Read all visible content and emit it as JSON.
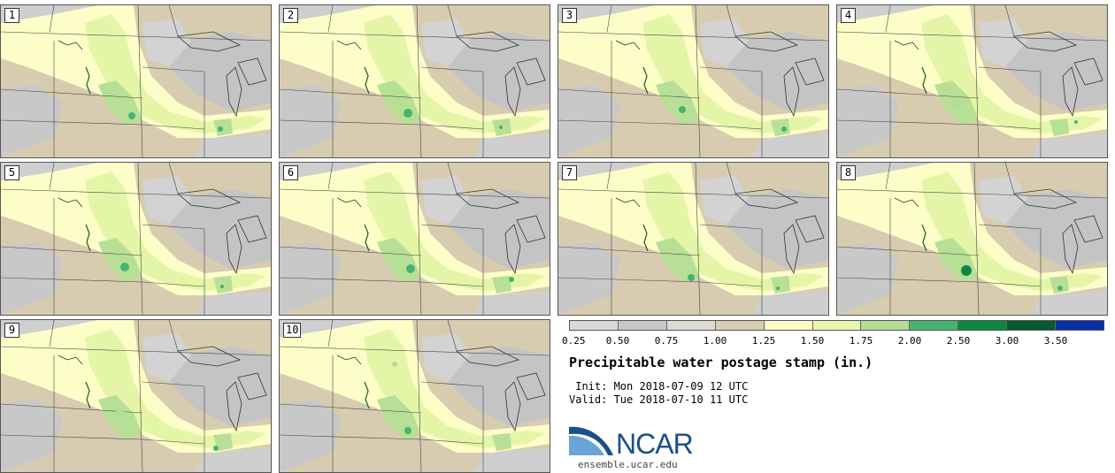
{
  "stamps": [
    "1",
    "2",
    "3",
    "4",
    "5",
    "6",
    "7",
    "8",
    "9",
    "10"
  ],
  "legend": {
    "colors": [
      "#d9d9d9",
      "#c8c8c8",
      "#dcdcd2",
      "#d8cdb0",
      "#fdfdc8",
      "#e8f7b0",
      "#b2dd94",
      "#46b46e",
      "#0c8643",
      "#075a2e",
      "#0a2fa8"
    ],
    "ticks": [
      "0.25",
      "0.50",
      "0.75",
      "1.00",
      "1.25",
      "1.50",
      "1.75",
      "2.00",
      "2.50",
      "3.00",
      "3.50"
    ]
  },
  "title": "Precipitable water postage stamp (in.)",
  "init": " Init: Mon 2018-07-09 12 UTC",
  "valid": "Valid: Tue 2018-07-10 11 UTC",
  "logo": {
    "name": "NCAR",
    "site": "ensemble.ucar.edu",
    "colors": {
      "arc_dark": "#1b4f8a",
      "arc_light": "#6aa3d6"
    }
  }
}
